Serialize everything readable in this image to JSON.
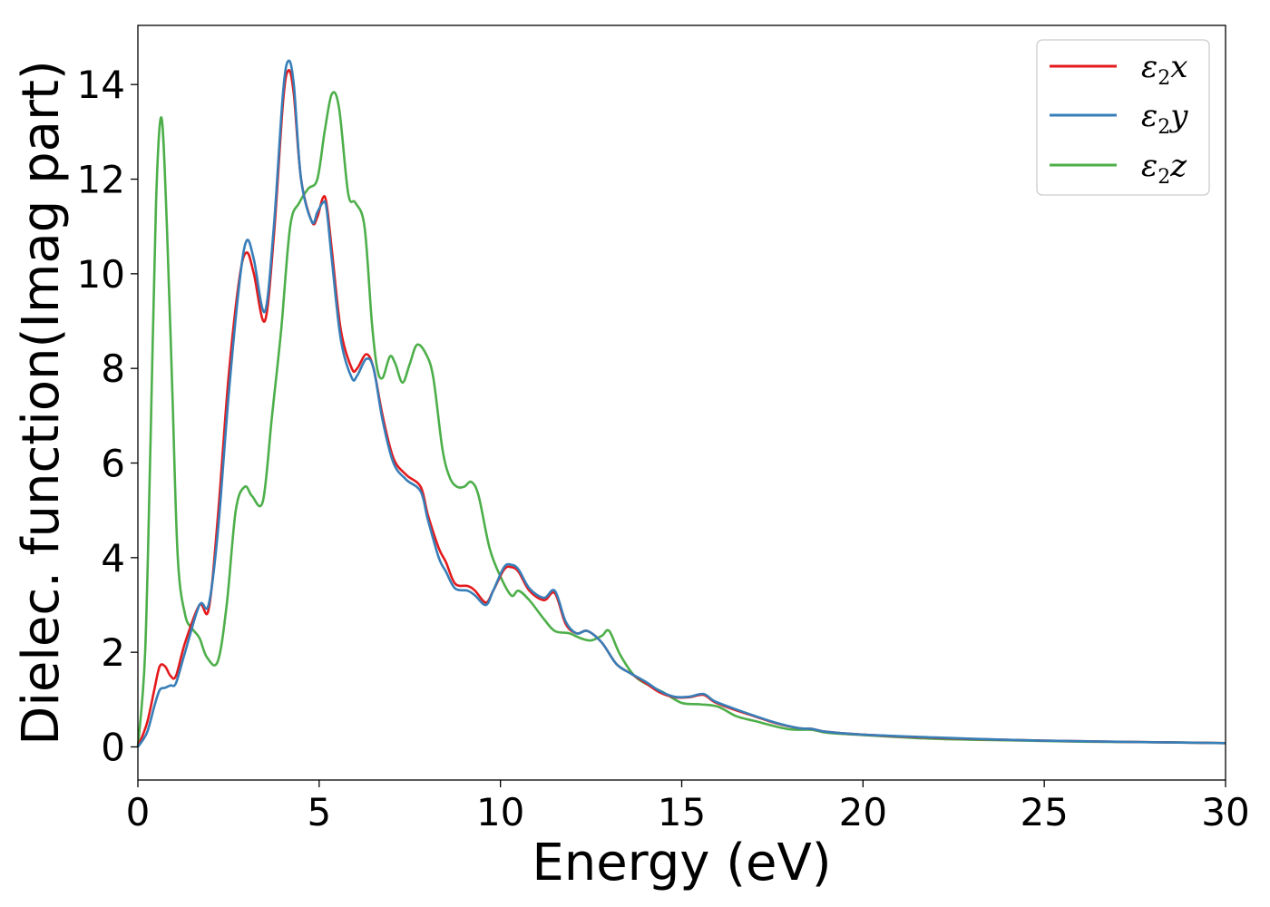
{
  "chart_data": {
    "type": "line",
    "xlabel": "Energy (eV)",
    "ylabel": "Dielec. function(Imag part)",
    "xlim": [
      0,
      30
    ],
    "ylim": [
      -0.7,
      15.25
    ],
    "xticks": [
      0,
      5,
      10,
      15,
      20,
      25,
      30
    ],
    "yticks": [
      0,
      2,
      4,
      6,
      8,
      10,
      12,
      14
    ],
    "grid": false,
    "legend_position": "top-right",
    "series": [
      {
        "name": "ε2x",
        "symbol": "ε",
        "sub": "2",
        "axis": "x",
        "color": "#e41a1c",
        "x": [
          0,
          0.25,
          0.45,
          0.6,
          0.75,
          0.9,
          1.05,
          1.3,
          1.7,
          1.95,
          2.2,
          2.5,
          2.8,
          3.0,
          3.2,
          3.5,
          3.75,
          4.0,
          4.15,
          4.3,
          4.5,
          4.8,
          4.95,
          5.1,
          5.2,
          5.35,
          5.6,
          5.9,
          6.05,
          6.3,
          6.5,
          6.75,
          7.05,
          7.4,
          7.8,
          8.0,
          8.3,
          8.5,
          8.75,
          9.1,
          9.3,
          9.6,
          9.8,
          10.1,
          10.3,
          10.5,
          10.8,
          11.2,
          11.5,
          11.8,
          12.1,
          12.4,
          12.8,
          13.2,
          13.6,
          14.0,
          14.4,
          14.8,
          15.2,
          15.6,
          15.9,
          16.4,
          17.0,
          17.6,
          18.2,
          18.6,
          19.0,
          20,
          22,
          24,
          26,
          28,
          30
        ],
        "y": [
          0.0,
          0.5,
          1.2,
          1.7,
          1.7,
          1.5,
          1.5,
          2.2,
          3.0,
          2.9,
          4.8,
          7.8,
          9.9,
          10.45,
          10.0,
          9.0,
          10.8,
          13.6,
          14.3,
          13.8,
          12.0,
          11.1,
          11.2,
          11.6,
          11.5,
          10.5,
          8.8,
          8.0,
          8.0,
          8.3,
          8.0,
          7.0,
          6.1,
          5.75,
          5.5,
          4.9,
          4.2,
          3.9,
          3.45,
          3.4,
          3.3,
          3.05,
          3.3,
          3.75,
          3.8,
          3.7,
          3.3,
          3.1,
          3.25,
          2.6,
          2.4,
          2.45,
          2.2,
          1.75,
          1.55,
          1.35,
          1.15,
          1.05,
          1.05,
          1.1,
          0.95,
          0.8,
          0.65,
          0.5,
          0.4,
          0.38,
          0.32,
          0.26,
          0.19,
          0.15,
          0.12,
          0.1,
          0.08
        ]
      },
      {
        "name": "ε2y",
        "symbol": "ε",
        "sub": "2",
        "axis": "y",
        "color": "#377eb8",
        "x": [
          0,
          0.25,
          0.45,
          0.6,
          0.75,
          0.9,
          1.05,
          1.3,
          1.7,
          1.95,
          2.2,
          2.5,
          2.8,
          3.0,
          3.2,
          3.5,
          3.75,
          4.0,
          4.15,
          4.3,
          4.5,
          4.8,
          4.95,
          5.1,
          5.2,
          5.35,
          5.6,
          5.9,
          6.05,
          6.3,
          6.5,
          6.75,
          7.05,
          7.4,
          7.8,
          8.0,
          8.3,
          8.5,
          8.75,
          9.1,
          9.3,
          9.6,
          9.8,
          10.1,
          10.3,
          10.5,
          10.8,
          11.2,
          11.5,
          11.8,
          12.1,
          12.4,
          12.8,
          13.2,
          13.6,
          14.0,
          14.4,
          14.8,
          15.2,
          15.6,
          15.9,
          16.4,
          17.0,
          17.6,
          18.2,
          18.6,
          19.0,
          20,
          22,
          24,
          26,
          28,
          30
        ],
        "y": [
          0.0,
          0.3,
          0.85,
          1.2,
          1.25,
          1.3,
          1.35,
          2.0,
          3.0,
          3.0,
          4.5,
          7.4,
          9.8,
          10.7,
          10.3,
          9.2,
          11.0,
          13.8,
          14.5,
          14.0,
          12.0,
          11.1,
          11.3,
          11.5,
          11.4,
          10.3,
          8.6,
          7.8,
          7.85,
          8.2,
          8.0,
          6.9,
          6.0,
          5.65,
          5.4,
          4.8,
          4.0,
          3.7,
          3.35,
          3.3,
          3.2,
          3.0,
          3.3,
          3.8,
          3.85,
          3.75,
          3.35,
          3.15,
          3.3,
          2.65,
          2.4,
          2.45,
          2.2,
          1.75,
          1.55,
          1.38,
          1.18,
          1.06,
          1.06,
          1.12,
          0.97,
          0.82,
          0.66,
          0.51,
          0.4,
          0.38,
          0.32,
          0.26,
          0.2,
          0.15,
          0.12,
          0.1,
          0.08
        ]
      },
      {
        "name": "ε2z",
        "symbol": "ε",
        "sub": "2",
        "axis": "z",
        "color": "#4daf4a",
        "x": [
          0,
          0.2,
          0.35,
          0.5,
          0.65,
          0.8,
          0.95,
          1.1,
          1.3,
          1.5,
          1.7,
          1.9,
          2.2,
          2.45,
          2.7,
          2.95,
          3.15,
          3.45,
          3.7,
          3.95,
          4.2,
          4.45,
          4.7,
          4.95,
          5.15,
          5.35,
          5.55,
          5.8,
          6.0,
          6.25,
          6.45,
          6.6,
          6.75,
          6.95,
          7.1,
          7.3,
          7.5,
          7.7,
          7.95,
          8.15,
          8.4,
          8.6,
          8.8,
          9.0,
          9.2,
          9.4,
          9.7,
          10.0,
          10.3,
          10.5,
          10.8,
          11.2,
          11.5,
          11.9,
          12.2,
          12.5,
          12.8,
          13.0,
          13.3,
          13.7,
          14.1,
          14.5,
          15.0,
          15.5,
          16.0,
          16.5,
          17.0,
          17.5,
          18.0,
          18.6,
          19.0,
          20,
          22,
          24,
          26,
          28,
          30
        ],
        "y": [
          0.0,
          2.0,
          6.5,
          11.5,
          13.3,
          11.0,
          7.5,
          4.0,
          2.8,
          2.5,
          2.3,
          1.9,
          1.8,
          3.0,
          5.0,
          5.5,
          5.3,
          5.2,
          7.0,
          8.8,
          11.0,
          11.5,
          11.8,
          12.0,
          13.0,
          13.8,
          13.5,
          11.7,
          11.5,
          11.0,
          9.0,
          8.0,
          7.8,
          8.25,
          8.1,
          7.7,
          8.1,
          8.5,
          8.3,
          7.8,
          6.3,
          5.7,
          5.5,
          5.5,
          5.6,
          5.3,
          4.2,
          3.6,
          3.2,
          3.3,
          3.1,
          2.7,
          2.45,
          2.4,
          2.3,
          2.25,
          2.35,
          2.45,
          1.95,
          1.5,
          1.3,
          1.15,
          0.93,
          0.9,
          0.85,
          0.65,
          0.55,
          0.45,
          0.37,
          0.36,
          0.3,
          0.25,
          0.17,
          0.14,
          0.11,
          0.1,
          0.08
        ]
      }
    ]
  }
}
